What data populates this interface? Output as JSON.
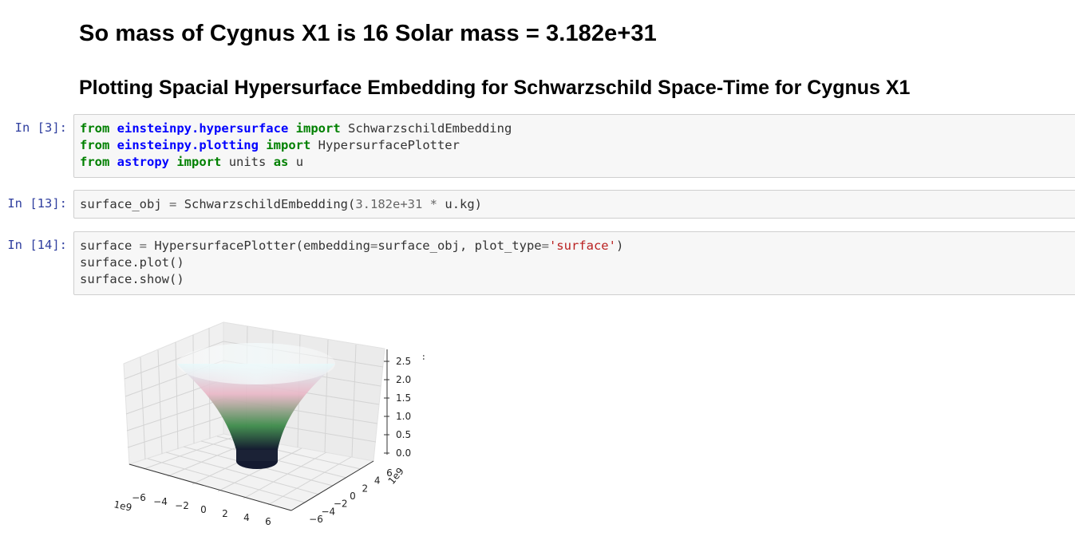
{
  "markdown": {
    "heading1": "So mass of Cygnus X1 is 16 Solar mass = 3.182e+31",
    "heading2": "Plotting Spacial Hypersurface Embedding for Schwarzschild Space-Time for Cygnus X1"
  },
  "cells": [
    {
      "prompt": "In [3]:",
      "lines": [
        {
          "kw1": "from",
          "mod": "einsteinpy.hypersurface",
          "kw2": "import",
          "name": "SchwarzschildEmbedding"
        },
        {
          "kw1": "from",
          "mod": "einsteinpy.plotting",
          "kw2": "import",
          "name": "HypersurfacePlotter"
        },
        {
          "kw1": "from",
          "mod": "astropy",
          "kw2": "import",
          "name": "units",
          "kw3": "as",
          "alias": "u"
        }
      ]
    },
    {
      "prompt": "In [13]:",
      "code": {
        "lhs": "surface_obj",
        "eq": "=",
        "call": "SchwarzschildEmbedding(",
        "num": "3.182e+31",
        "mul": "*",
        "rest": "u.kg)"
      }
    },
    {
      "prompt": "In [14]:",
      "code": {
        "line1_pre": "surface ",
        "line1_eq": "=",
        "line1_mid": " HypersurfacePlotter(embedding",
        "line1_eq2": "=",
        "line1_mid2": "surface_obj, plot_type",
        "line1_eq3": "=",
        "line1_str": "'surface'",
        "line1_end": ")",
        "line2": "surface.plot()",
        "line3": "surface.show()"
      }
    }
  ],
  "chart_data": {
    "type": "surface3d",
    "title": "",
    "x_ticks": [
      "−6",
      "−4",
      "−2",
      "0",
      "2",
      "4",
      "6"
    ],
    "y_ticks": [
      "−6",
      "−4",
      "−2",
      "0",
      "2",
      "4",
      "6"
    ],
    "z_ticks": [
      "0.0",
      "0.5",
      "1.0",
      "1.5",
      "2.0",
      "2.5"
    ],
    "x_offset_label": "1e9",
    "y_offset_label": "1e9",
    "colors": {
      "top": "#d8f6f8",
      "upper": "#e9b6c6",
      "middle": "#3d8b4a",
      "bottom": "#141a30"
    }
  }
}
